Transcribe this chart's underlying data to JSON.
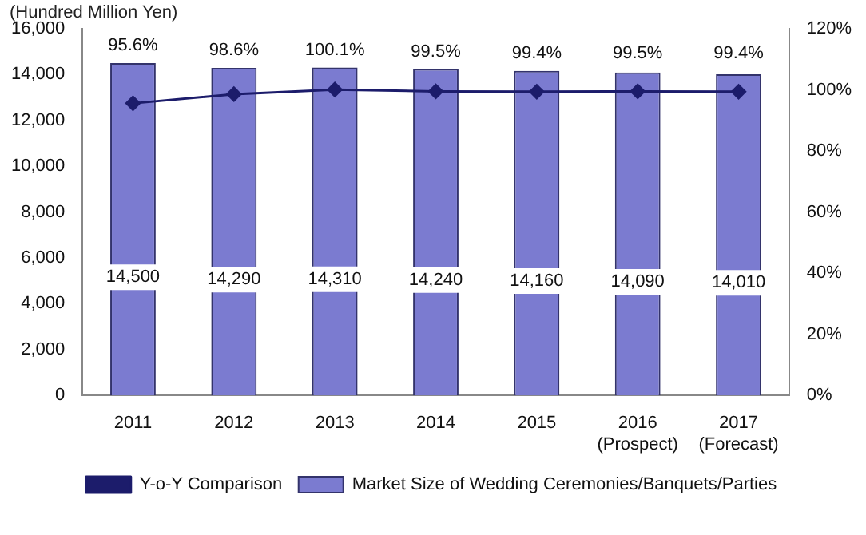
{
  "chart_data": {
    "type": "bar",
    "ylabel": "(Hundred Million Yen)",
    "categories": [
      "2011",
      "2012",
      "2013",
      "2014",
      "2015",
      "2016\n(Prospect)",
      "2017\n(Forecast)"
    ],
    "series": [
      {
        "name": "Market Size of Wedding Ceremonies/Banquets/Parties",
        "color": "#7b7bd0",
        "values": [
          14500,
          14290,
          14310,
          14240,
          14160,
          14090,
          14010
        ],
        "value_labels": [
          "14,500",
          "14,290",
          "14,310",
          "14,240",
          "14,160",
          "14,090",
          "14,010"
        ]
      },
      {
        "name": "Y-o-Y Comparison",
        "type": "line",
        "axis": "y2",
        "color": "#1c1c6b",
        "values": [
          95.6,
          98.6,
          100.1,
          99.5,
          99.4,
          99.5,
          99.4
        ],
        "value_labels": [
          "95.6%",
          "98.6%",
          "100.1%",
          "99.5%",
          "99.4%",
          "99.5%",
          "99.4%"
        ]
      }
    ],
    "ylim": [
      0,
      16000
    ],
    "yticks": [
      {
        "value": 0,
        "label": "0"
      },
      {
        "value": 2000,
        "label": "2,000"
      },
      {
        "value": 4000,
        "label": "4,000"
      },
      {
        "value": 6000,
        "label": "6,000"
      },
      {
        "value": 8000,
        "label": "8,000"
      },
      {
        "value": 10000,
        "label": "10,000"
      },
      {
        "value": 12000,
        "label": "12,000"
      },
      {
        "value": 14000,
        "label": "14,000"
      },
      {
        "value": 16000,
        "label": "16,000"
      }
    ],
    "y2lim": [
      0,
      120
    ],
    "y2ticks": [
      {
        "value": 0,
        "label": "0%"
      },
      {
        "value": 20,
        "label": "20%"
      },
      {
        "value": 40,
        "label": "40%"
      },
      {
        "value": 60,
        "label": "60%"
      },
      {
        "value": 80,
        "label": "80%"
      },
      {
        "value": 100,
        "label": "100%"
      },
      {
        "value": 120,
        "label": "120%"
      }
    ],
    "grid": false,
    "legend": "bottom",
    "marker": "diamond",
    "line_style": "solid"
  }
}
